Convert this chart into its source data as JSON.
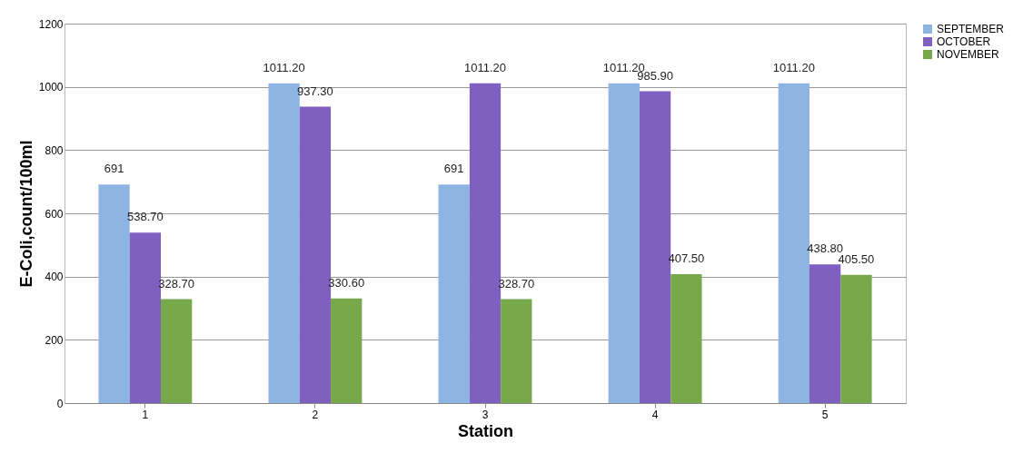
{
  "chart_data": {
    "type": "bar",
    "xlabel": "Station",
    "ylabel": "E-Coli,count/100ml",
    "categories": [
      "1",
      "2",
      "3",
      "4",
      "5"
    ],
    "series": [
      {
        "name": "SEPTEMBER",
        "color": "#8eb4e3",
        "values": [
          691,
          1011.2,
          691,
          1011.2,
          1011.2
        ],
        "value_labels": [
          "691",
          "1011.20",
          "691",
          "1011.20",
          "1011.20"
        ]
      },
      {
        "name": "OCTOBER",
        "color": "#7f5fbf",
        "values": [
          538.7,
          937.3,
          1011.2,
          985.9,
          438.8
        ],
        "value_labels": [
          "538.70",
          "937.30",
          "1011.20",
          "985.90",
          "438.80"
        ]
      },
      {
        "name": "NOVEMBER",
        "color": "#77a84a",
        "values": [
          328.7,
          330.6,
          328.7,
          407.5,
          405.5
        ],
        "value_labels": [
          "328.70",
          "330.60",
          "328.70",
          "407.50",
          "405.50"
        ]
      }
    ],
    "ylim": [
      0,
      1200
    ],
    "yticks": [
      0,
      200,
      400,
      600,
      800,
      1000,
      1200
    ],
    "grid": "y",
    "legend": "right"
  }
}
